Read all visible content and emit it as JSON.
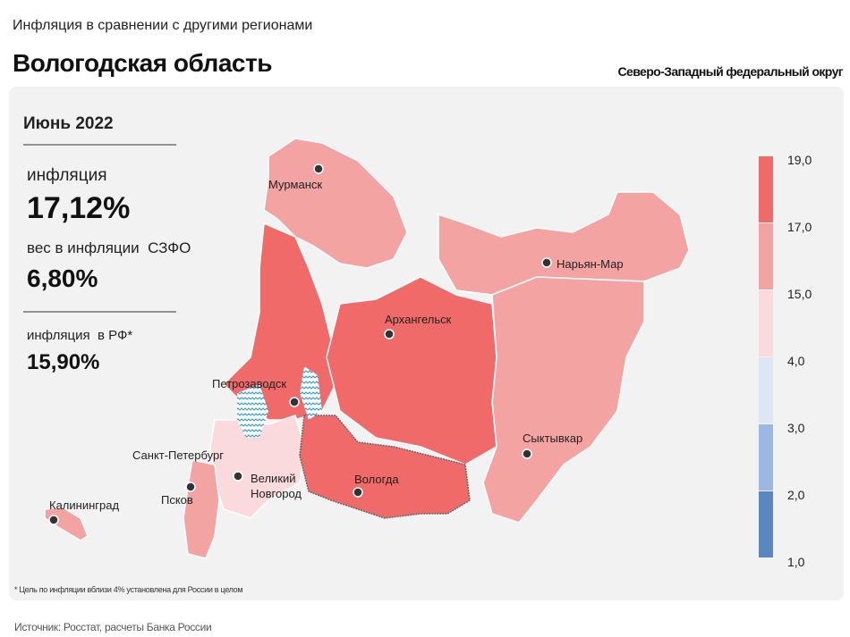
{
  "header": {
    "subtitle": "Инфляция в сравнении с другими регионами",
    "title": "Вологодская область",
    "district": "Северо-Западный федеральный округ"
  },
  "panel": {
    "period": "Июнь 2022",
    "inflation_label": "инфляция",
    "inflation_value": "17,12%",
    "weight_label": "вес в инфляции  СЗФО",
    "weight_value": "6,80%",
    "rf_label": "инфляция  в РФ*",
    "rf_value": "15,90%"
  },
  "cities": [
    "Мурманск",
    "Нарьян-Мар",
    "Архангельск",
    "Петрозаводск",
    "Сыктывкар",
    "Санкт-Петербург",
    "Великий Новгород",
    "Вологда",
    "Псков",
    "Калининград"
  ],
  "legend": {
    "ticks": [
      "19,0",
      "17,0",
      "15,0",
      "4,0",
      "3,0",
      "2,0",
      "1,0"
    ],
    "colors": [
      "#f06a6a",
      "#f4a3a3",
      "#fadadd",
      "#dce6f4",
      "#9db8e0",
      "#5b87c1"
    ]
  },
  "footnote": "* Цель по инфляции вблизи 4% установлена для России в целом",
  "source": "Источник: Росстат, расчеты Банка России"
}
